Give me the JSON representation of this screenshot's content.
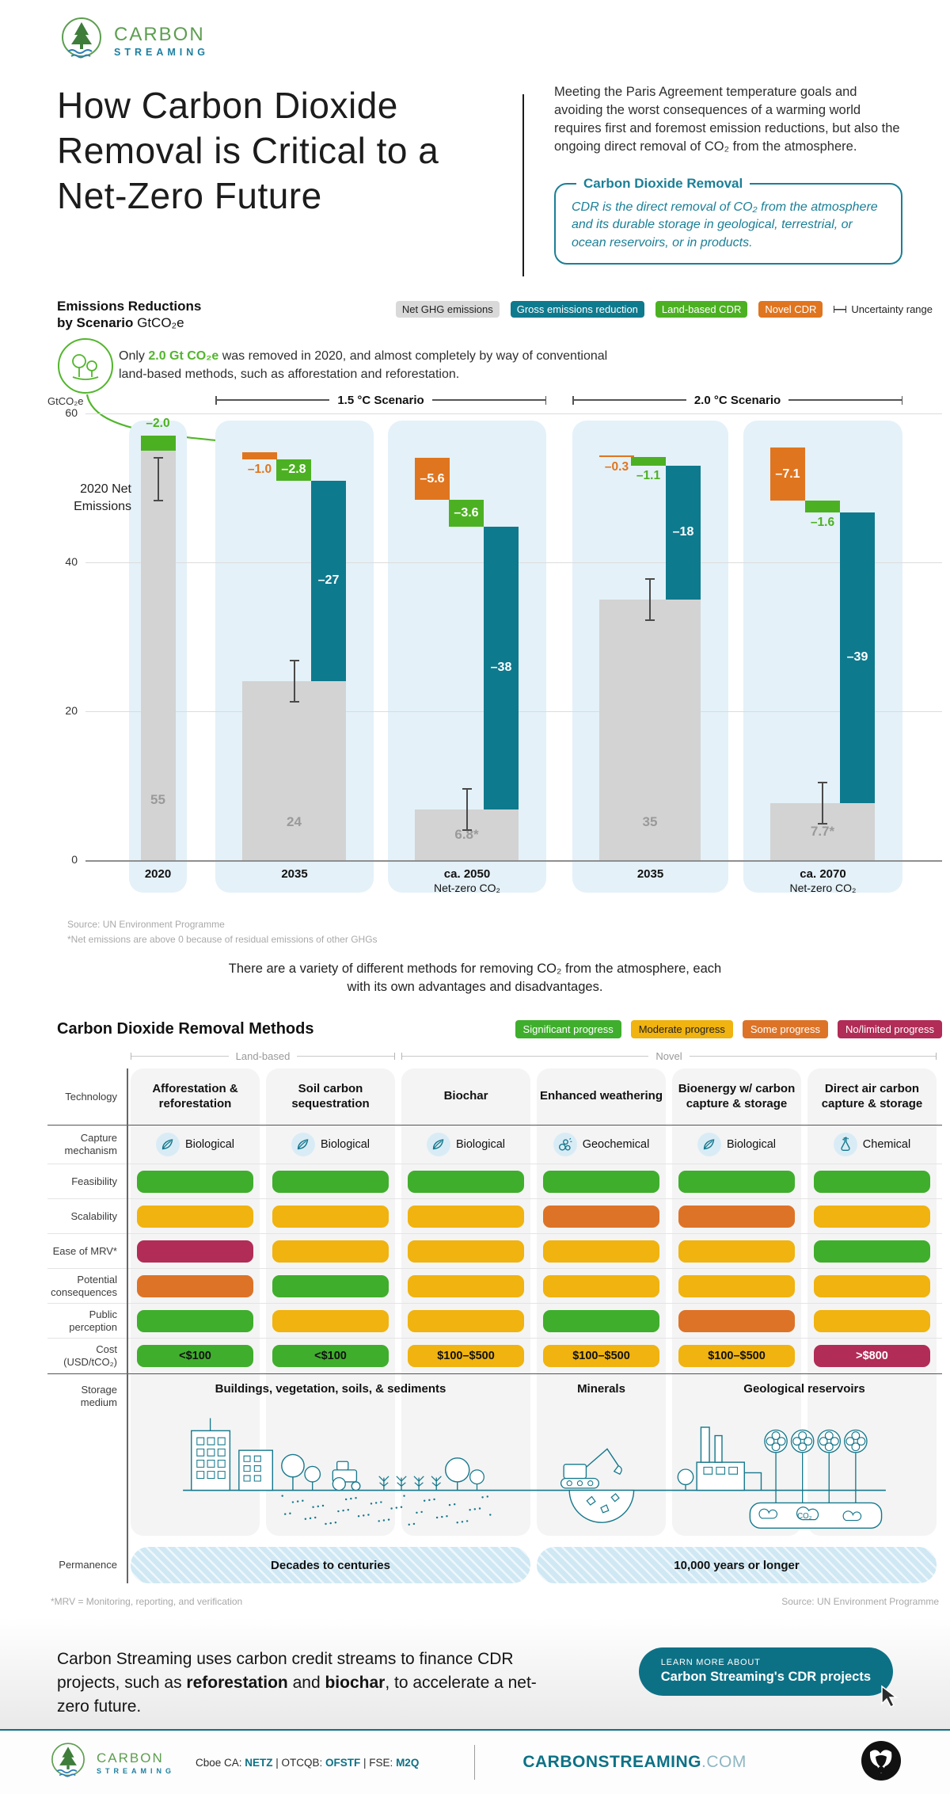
{
  "brand": {
    "name_line1": "CARBON",
    "name_line2": "STREAMING"
  },
  "header": {
    "title": "How Carbon Dioxide Removal is Critical to a Net-Zero Future",
    "intro": "Meeting the Paris Agreement temperature goals and avoiding the worst consequences of a warming world requires first and foremost emission reductions, but also the ongoing direct removal of CO₂ from the atmosphere.",
    "cdr_box_title": "Carbon Dioxide Removal",
    "cdr_box_body": "CDR is the direct removal of CO₂ from the atmosphere and its durable storage in geological, terrestrial, or ocean reservoirs, or in products."
  },
  "colors": {
    "teal": "#0e7a8e",
    "green": "#4cb122",
    "orange": "#e0751f",
    "gray_bar": "#d3d3d3",
    "gray_badge": "#d9d9d9",
    "gold": "#f0b30f",
    "maroon": "#b12c57",
    "green_pill": "#3fae2c",
    "orange_pill": "#dd7327",
    "light_blue": "#e4f1f8",
    "accent": "#0d7186",
    "note_green": "#52b62c"
  },
  "chart_data": {
    "type": "waterfall-bar",
    "title_line1": "Emissions Reductions",
    "title_line2": "by Scenario ",
    "unit": "GtCO₂e",
    "ylabel": "GtCO₂e",
    "ylim": [
      0,
      60
    ],
    "yticks": [
      0,
      20,
      40,
      60
    ],
    "legend": [
      {
        "label": "Net GHG emissions",
        "key": "net"
      },
      {
        "label": "Gross emissions reduction",
        "key": "gross"
      },
      {
        "label": "Land-based CDR",
        "key": "land"
      },
      {
        "label": "Novel CDR",
        "key": "novel"
      }
    ],
    "uncertainty_label": "Uncertainty range",
    "annotation_2020": "2020 Net Emissions",
    "note_2020_segments": [
      {
        "text": "Only "
      },
      {
        "text": "2.0 Gt CO₂e",
        "bold": true,
        "green": true
      },
      {
        "text": " was removed in 2020, and almost completely by way of conventional land-based methods, such as afforestation and reforestation."
      }
    ],
    "scenarios": [
      {
        "label": "1.5 °C Scenario",
        "from": 1,
        "to": 2
      },
      {
        "label": "2.0 °C Scenario",
        "from": 3,
        "to": 4
      }
    ],
    "groups": [
      {
        "label": "2020",
        "sublabel": "",
        "net": 55,
        "net_label": "55",
        "segments": [
          {
            "type": "land",
            "value": 2.0,
            "label": "–2.0"
          }
        ]
      },
      {
        "label": "2035",
        "sublabel": "",
        "net": 24,
        "net_label": "24",
        "segments": [
          {
            "type": "gross",
            "value": 27,
            "label": "–27"
          },
          {
            "type": "land",
            "value": 2.8,
            "label": "–2.8"
          },
          {
            "type": "novel",
            "value": 1.0,
            "label": "–1.0"
          }
        ]
      },
      {
        "label": "ca. 2050",
        "sublabel": "Net-zero CO₂",
        "net": 6.8,
        "net_label": "6.8*",
        "segments": [
          {
            "type": "gross",
            "value": 38,
            "label": "–38"
          },
          {
            "type": "land",
            "value": 3.6,
            "label": "–3.6"
          },
          {
            "type": "novel",
            "value": 5.6,
            "label": "–5.6"
          }
        ]
      },
      {
        "label": "2035",
        "sublabel": "",
        "net": 35,
        "net_label": "35",
        "segments": [
          {
            "type": "gross",
            "value": 18,
            "label": "–18"
          },
          {
            "type": "land",
            "value": 1.1,
            "label": "–1.1"
          },
          {
            "type": "novel",
            "value": 0.3,
            "label": "–0.3"
          }
        ]
      },
      {
        "label": "ca. 2070",
        "sublabel": "Net-zero CO₂",
        "net": 7.7,
        "net_label": "7.7*",
        "segments": [
          {
            "type": "gross",
            "value": 39,
            "label": "–39"
          },
          {
            "type": "land",
            "value": 1.6,
            "label": "–1.6"
          },
          {
            "type": "novel",
            "value": 7.1,
            "label": "–7.1"
          }
        ]
      }
    ],
    "source_line1": "Source: UN Environment Programme",
    "source_line2": "*Net emissions are above 0 because of residual emissions of other GHGs"
  },
  "mid_text": "There are a variety of different methods for removing CO₂ from the atmosphere, each with its own advantages and disadvantages.",
  "methods": {
    "title": "Carbon Dioxide Removal Methods",
    "progress_legend": [
      {
        "label": "Significant progress",
        "level": "significant"
      },
      {
        "label": "Moderate progress",
        "level": "moderate"
      },
      {
        "label": "Some progress",
        "level": "some"
      },
      {
        "label": "No/limited progress",
        "level": "none"
      }
    ],
    "group_brackets": [
      {
        "label": "Land-based",
        "from": 0,
        "to": 1
      },
      {
        "label": "Novel",
        "from": 2,
        "to": 5
      }
    ],
    "row_labels": {
      "technology": "Technology",
      "capture": "Capture mechanism",
      "feasibility": "Feasibility",
      "scalability": "Scalability",
      "mrv": "Ease of MRV*",
      "consequences": "Potential consequences",
      "perception": "Public perception",
      "cost": "Cost (USD/tCO₂)",
      "storage": "Storage medium",
      "permanence": "Permanence"
    },
    "columns": [
      {
        "name": "Afforestation & reforestation",
        "mechanism": "Biological",
        "icon": "leaf-icon",
        "ratings": {
          "feasibility": "significant",
          "scalability": "moderate",
          "mrv": "none",
          "consequences": "some",
          "perception": "significant"
        },
        "cost": {
          "label": "<$100",
          "level": "significant"
        }
      },
      {
        "name": "Soil carbon sequestration",
        "mechanism": "Biological",
        "icon": "leaf-icon",
        "ratings": {
          "feasibility": "significant",
          "scalability": "moderate",
          "mrv": "moderate",
          "consequences": "significant",
          "perception": "moderate"
        },
        "cost": {
          "label": "<$100",
          "level": "significant"
        }
      },
      {
        "name": "Biochar",
        "mechanism": "Biological",
        "icon": "leaf-icon",
        "ratings": {
          "feasibility": "significant",
          "scalability": "moderate",
          "mrv": "moderate",
          "consequences": "moderate",
          "perception": "moderate"
        },
        "cost": {
          "label": "$100–$500",
          "level": "moderate"
        }
      },
      {
        "name": "Enhanced weathering",
        "mechanism": "Geochemical",
        "icon": "rocks-icon",
        "ratings": {
          "feasibility": "significant",
          "scalability": "some",
          "mrv": "moderate",
          "consequences": "moderate",
          "perception": "significant"
        },
        "cost": {
          "label": "$100–$500",
          "level": "moderate"
        }
      },
      {
        "name": "Bioenergy w/ carbon capture & storage",
        "mechanism": "Biological",
        "icon": "leaf-icon",
        "ratings": {
          "feasibility": "significant",
          "scalability": "some",
          "mrv": "moderate",
          "consequences": "moderate",
          "perception": "some"
        },
        "cost": {
          "label": "$100–$500",
          "level": "moderate"
        }
      },
      {
        "name": "Direct air carbon capture & storage",
        "mechanism": "Chemical",
        "icon": "flask-icon",
        "ratings": {
          "feasibility": "significant",
          "scalability": "moderate",
          "mrv": "significant",
          "consequences": "moderate",
          "perception": "moderate"
        },
        "cost": {
          "label": ">$800",
          "level": "none"
        }
      }
    ],
    "rating_rows": [
      "feasibility",
      "scalability",
      "mrv",
      "consequences",
      "perception"
    ],
    "storage_spans": [
      {
        "label": "Buildings, vegetation, soils, & sediments",
        "cols": 3
      },
      {
        "label": "Minerals",
        "cols": 1
      },
      {
        "label": "Geological reservoirs",
        "cols": 2
      }
    ],
    "storage_co2_label": "CO₂",
    "permanence_spans": [
      {
        "label": "Decades to centuries",
        "cols": 3
      },
      {
        "label": "10,000 years or longer",
        "cols": 3
      }
    ],
    "footnote_left": "*MRV = Monitoring, reporting, and verification",
    "footnote_right": "Source: UN Environment Programme"
  },
  "cta": {
    "text_segments": [
      {
        "text": "Carbon Streaming uses carbon credit streams to finance CDR projects, such as "
      },
      {
        "text": "reforestation",
        "bold": true
      },
      {
        "text": " and "
      },
      {
        "text": "biochar",
        "bold": true
      },
      {
        "text": ", to accelerate a net-zero future."
      }
    ],
    "button_line1": "LEARN MORE ABOUT",
    "button_line2": "Carbon Streaming's CDR projects"
  },
  "footer": {
    "ticker_segments": [
      {
        "text": "Cboe CA: "
      },
      {
        "text": "NETZ",
        "bold": true
      },
      {
        "text": " | OTCQB: "
      },
      {
        "text": "OFSTF",
        "bold": true
      },
      {
        "text": " | FSE: "
      },
      {
        "text": "M2Q",
        "bold": true
      }
    ],
    "site_bold": "CARBONSTREAMING",
    "site_rest": ".COM"
  }
}
